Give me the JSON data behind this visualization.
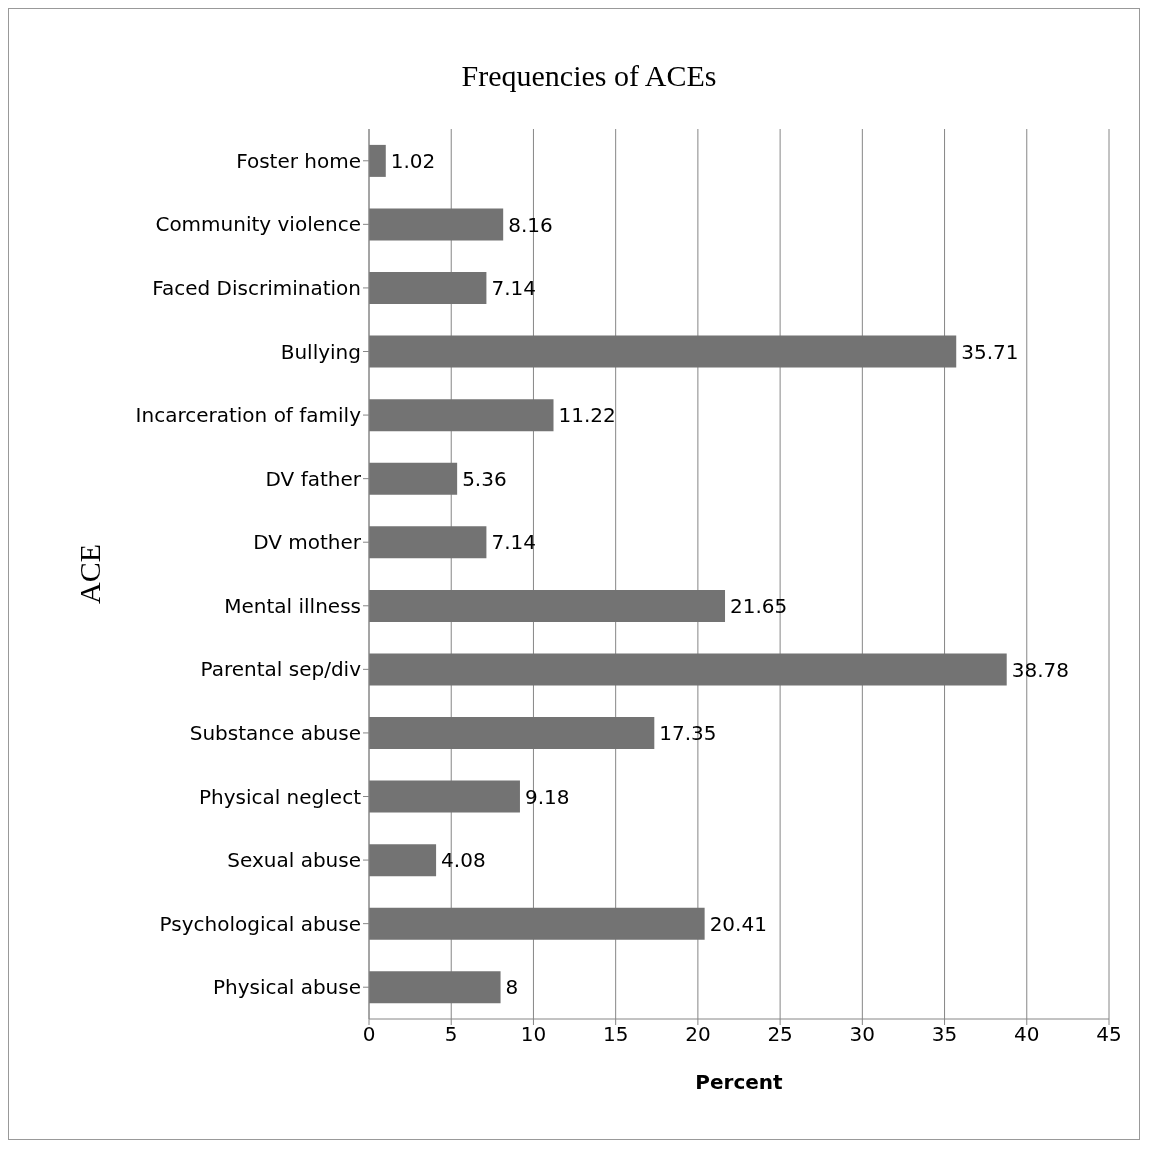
{
  "chart_data": {
    "type": "bar",
    "orientation": "horizontal",
    "title": "Frequencies of ACEs",
    "xlabel": "Percent",
    "ylabel": "ACE",
    "categories": [
      "Foster home",
      "Community violence",
      "Faced Discrimination",
      "Bullying",
      "Incarceration of family",
      "DV father",
      "DV mother",
      "Mental illness",
      "Parental sep/div",
      "Substance abuse",
      "Physical neglect",
      "Sexual abuse",
      "Psychological abuse",
      "Physical abuse"
    ],
    "values": [
      1.02,
      8.16,
      7.14,
      35.71,
      11.22,
      5.36,
      7.14,
      21.65,
      38.78,
      17.35,
      9.18,
      4.08,
      20.41,
      8
    ],
    "color": "#737373",
    "xlim": [
      0,
      45
    ],
    "xticks": [
      0,
      5,
      10,
      15,
      20,
      25,
      30,
      35,
      40,
      45
    ],
    "grid": "x",
    "data_labels": true
  }
}
